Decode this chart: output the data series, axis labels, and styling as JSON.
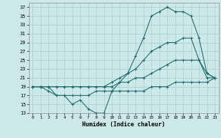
{
  "title": "",
  "xlabel": "Humidex (Indice chaleur)",
  "background_color": "#cce8e8",
  "grid_color": "#aacccc",
  "line_color": "#1a6b6b",
  "xlim": [
    -0.5,
    23.5
  ],
  "ylim": [
    13,
    38
  ],
  "yticks": [
    13,
    15,
    17,
    19,
    21,
    23,
    25,
    27,
    29,
    31,
    33,
    35,
    37
  ],
  "xticks": [
    0,
    1,
    2,
    3,
    4,
    5,
    6,
    7,
    8,
    9,
    10,
    11,
    12,
    13,
    14,
    15,
    16,
    17,
    18,
    19,
    20,
    21,
    22,
    23
  ],
  "series1_y": [
    19,
    19,
    18,
    17,
    17,
    15,
    16,
    14,
    13,
    13,
    18,
    20,
    22,
    26,
    30,
    35,
    36,
    37,
    36,
    36,
    35,
    30,
    22,
    21
  ],
  "series2_y": [
    19,
    19,
    19,
    19,
    19,
    19,
    19,
    19,
    19,
    19,
    20,
    21,
    22,
    23,
    25,
    27,
    28,
    29,
    29,
    30,
    30,
    25,
    22,
    21
  ],
  "series3_y": [
    19,
    19,
    19,
    19,
    19,
    19,
    19,
    19,
    19,
    19,
    19,
    20,
    20,
    21,
    21,
    22,
    23,
    24,
    25,
    25,
    25,
    25,
    21,
    21
  ],
  "series4_y": [
    19,
    19,
    19,
    17,
    17,
    17,
    17,
    17,
    18,
    18,
    18,
    18,
    18,
    18,
    18,
    19,
    19,
    19,
    20,
    20,
    20,
    20,
    20,
    21
  ]
}
